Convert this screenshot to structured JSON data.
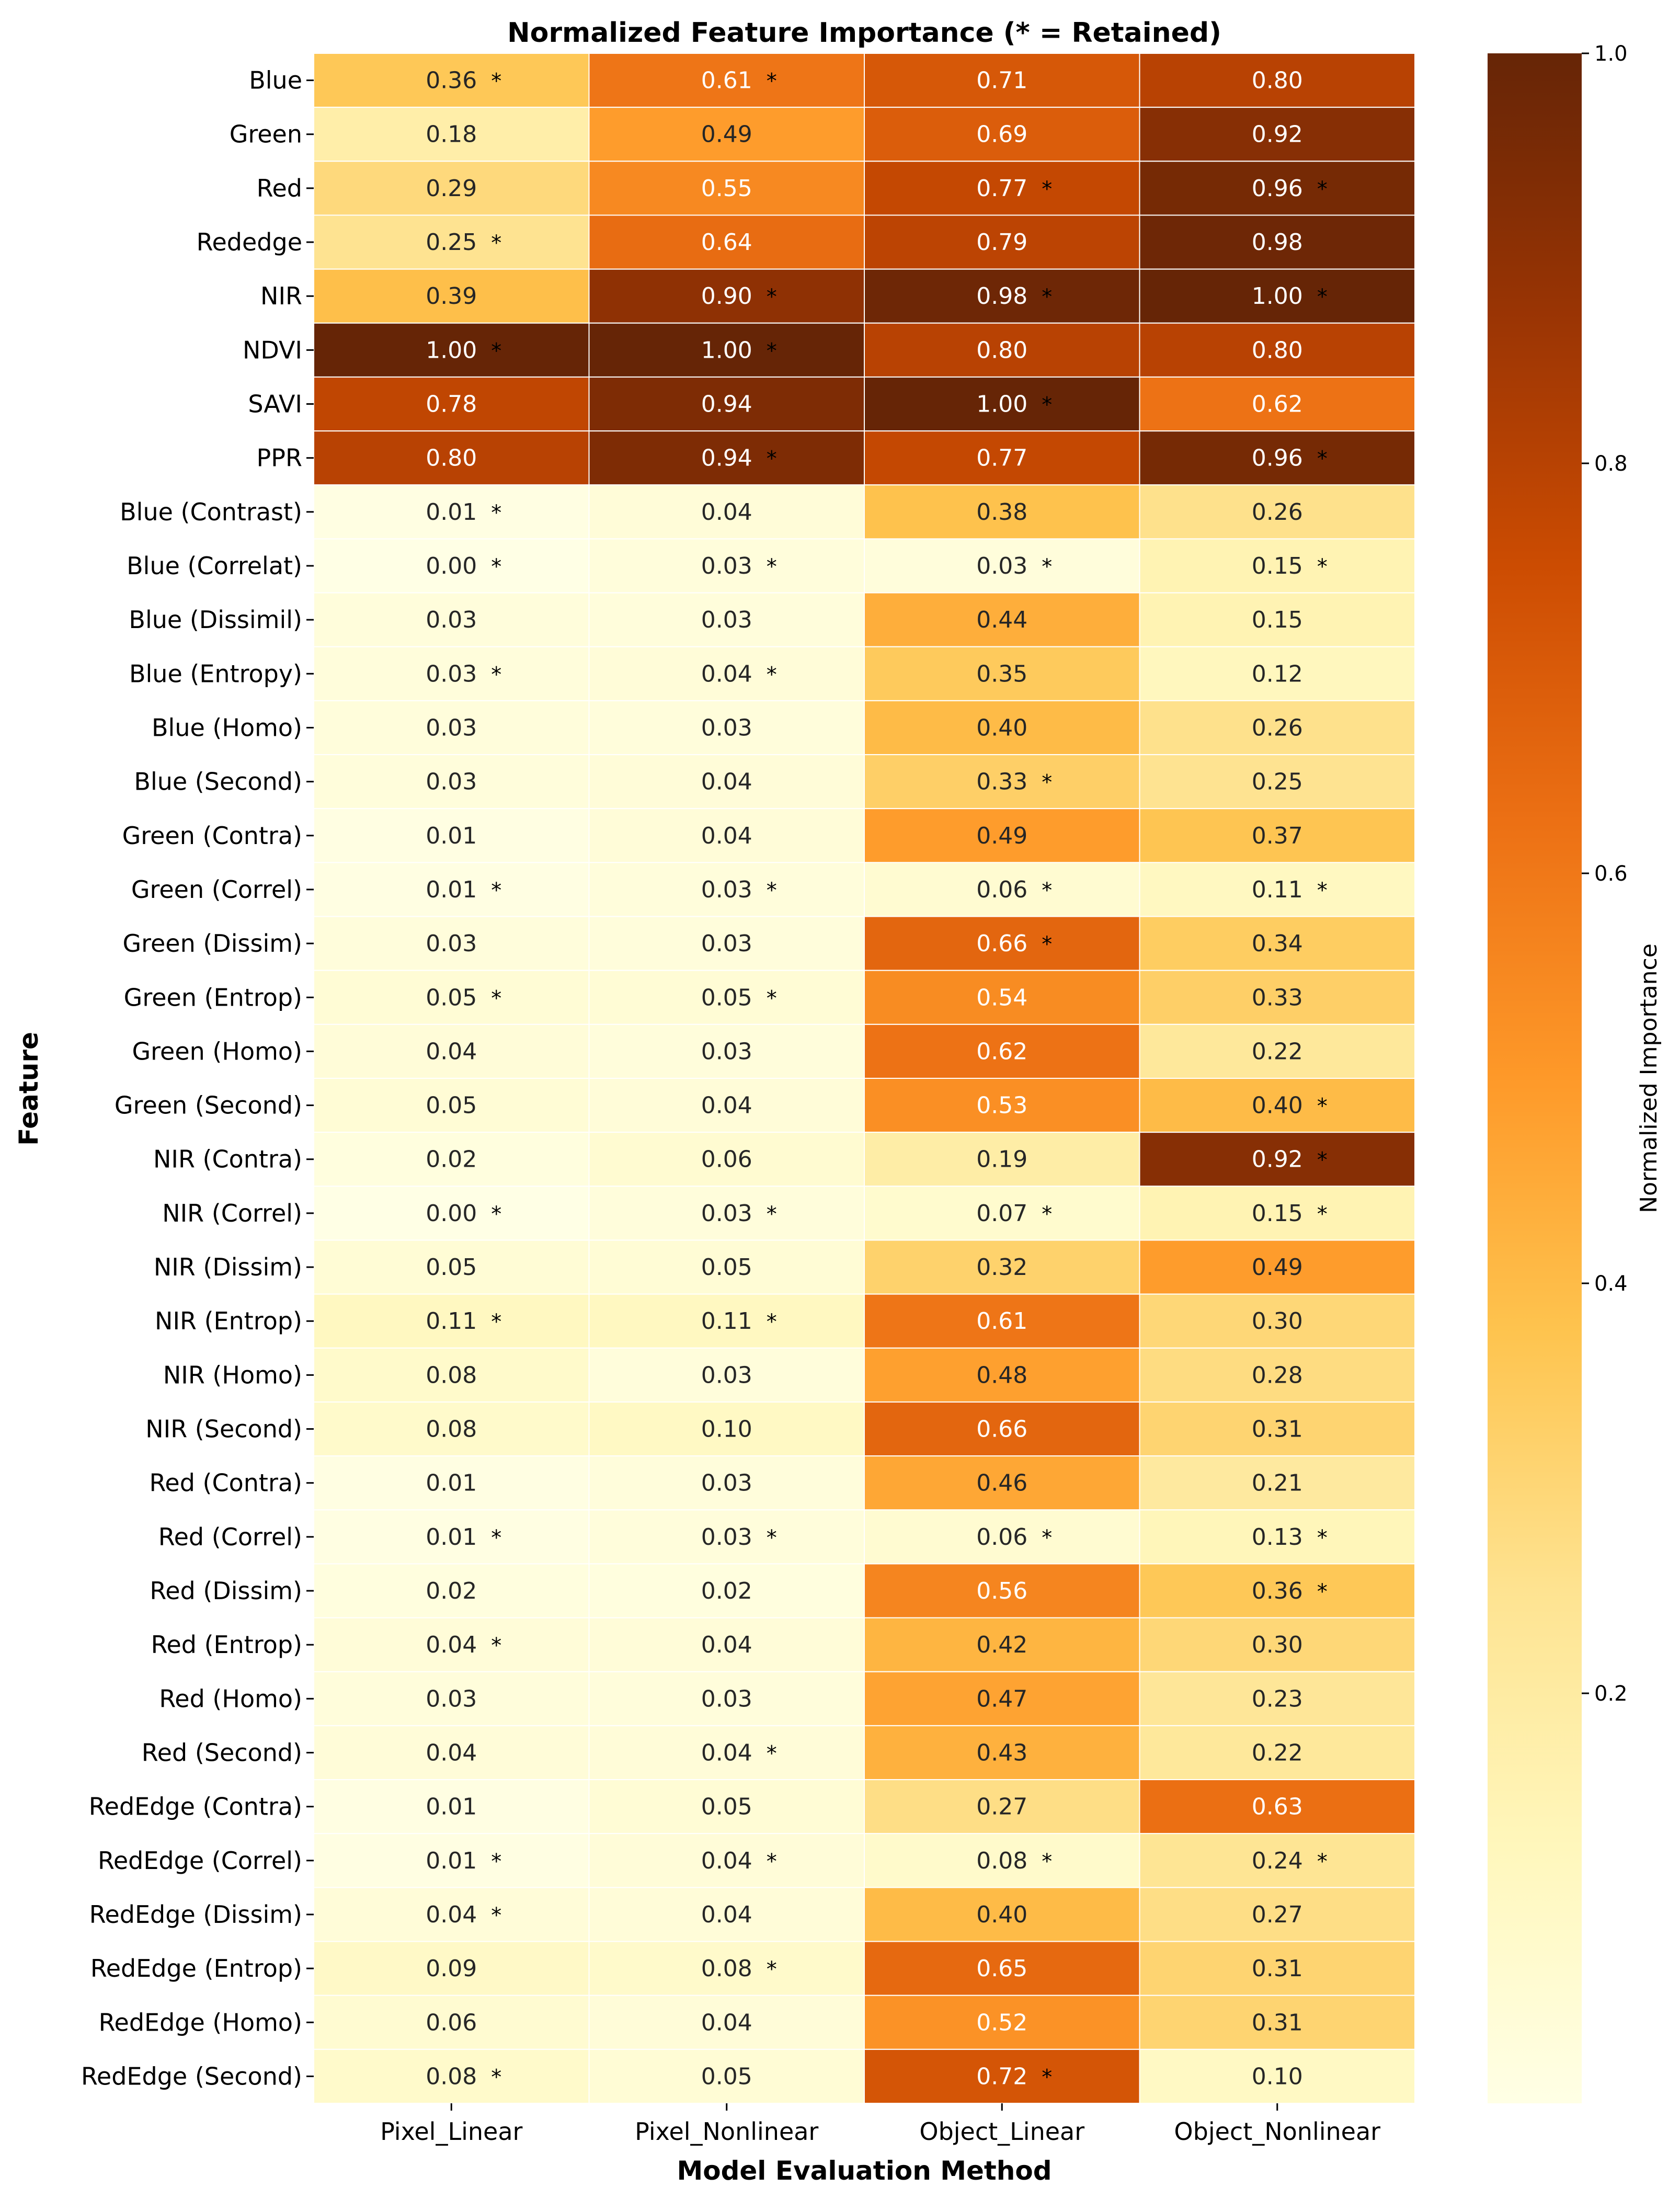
{
  "chart_data": {
    "type": "heatmap",
    "title": "Normalized Feature Importance (* = Retained)",
    "xlabel": "Model Evaluation Method",
    "ylabel": "Feature",
    "colorbar_label": "Normalized Importance",
    "colorbar_ticks": [
      "0.2",
      "0.4",
      "0.6",
      "0.8",
      "1.0"
    ],
    "colorbar_tick_values": [
      0.2,
      0.4,
      0.6,
      0.8,
      1.0
    ],
    "value_range": [
      0.0,
      1.0
    ],
    "colormap": "YlOrBr",
    "colormap_stops": [
      "#ffffe5",
      "#fff7bc",
      "#fee391",
      "#fec44f",
      "#fe9929",
      "#ec7014",
      "#cc4c02",
      "#993404",
      "#662506"
    ],
    "retained_marker": "*",
    "columns": [
      "Pixel_Linear",
      "Pixel_Nonlinear",
      "Object_Linear",
      "Object_Nonlinear"
    ],
    "rows": [
      "Blue",
      "Green",
      "Red",
      "Rededge",
      "NIR",
      "NDVI",
      "SAVI",
      "PPR",
      "Blue (Contrast)",
      "Blue (Correlat)",
      "Blue (Dissimil)",
      "Blue (Entropy)",
      "Blue (Homo)",
      "Blue (Second)",
      "Green (Contra)",
      "Green (Correl)",
      "Green (Dissim)",
      "Green (Entrop)",
      "Green (Homo)",
      "Green (Second)",
      "NIR (Contra)",
      "NIR (Correl)",
      "NIR (Dissim)",
      "NIR (Entrop)",
      "NIR (Homo)",
      "NIR (Second)",
      "Red (Contra)",
      "Red (Correl)",
      "Red (Dissim)",
      "Red (Entrop)",
      "Red (Homo)",
      "Red (Second)",
      "RedEdge (Contra)",
      "RedEdge (Correl)",
      "RedEdge (Dissim)",
      "RedEdge (Entrop)",
      "RedEdge (Homo)",
      "RedEdge (Second)"
    ],
    "values": [
      [
        0.36,
        0.61,
        0.71,
        0.8
      ],
      [
        0.18,
        0.49,
        0.69,
        0.92
      ],
      [
        0.29,
        0.55,
        0.77,
        0.96
      ],
      [
        0.25,
        0.64,
        0.79,
        0.98
      ],
      [
        0.39,
        0.9,
        0.98,
        1.0
      ],
      [
        1.0,
        1.0,
        0.8,
        0.8
      ],
      [
        0.78,
        0.94,
        1.0,
        0.62
      ],
      [
        0.8,
        0.94,
        0.77,
        0.96
      ],
      [
        0.01,
        0.04,
        0.38,
        0.26
      ],
      [
        0.0,
        0.03,
        0.03,
        0.15
      ],
      [
        0.03,
        0.03,
        0.44,
        0.15
      ],
      [
        0.03,
        0.04,
        0.35,
        0.12
      ],
      [
        0.03,
        0.03,
        0.4,
        0.26
      ],
      [
        0.03,
        0.04,
        0.33,
        0.25
      ],
      [
        0.01,
        0.04,
        0.49,
        0.37
      ],
      [
        0.01,
        0.03,
        0.06,
        0.11
      ],
      [
        0.03,
        0.03,
        0.66,
        0.34
      ],
      [
        0.05,
        0.05,
        0.54,
        0.33
      ],
      [
        0.04,
        0.03,
        0.62,
        0.22
      ],
      [
        0.05,
        0.04,
        0.53,
        0.4
      ],
      [
        0.02,
        0.06,
        0.19,
        0.92
      ],
      [
        0.0,
        0.03,
        0.07,
        0.15
      ],
      [
        0.05,
        0.05,
        0.32,
        0.49
      ],
      [
        0.11,
        0.11,
        0.61,
        0.3
      ],
      [
        0.08,
        0.03,
        0.48,
        0.28
      ],
      [
        0.08,
        0.1,
        0.66,
        0.31
      ],
      [
        0.01,
        0.03,
        0.46,
        0.21
      ],
      [
        0.01,
        0.03,
        0.06,
        0.13
      ],
      [
        0.02,
        0.02,
        0.56,
        0.36
      ],
      [
        0.04,
        0.04,
        0.42,
        0.3
      ],
      [
        0.03,
        0.03,
        0.47,
        0.23
      ],
      [
        0.04,
        0.04,
        0.43,
        0.22
      ],
      [
        0.01,
        0.05,
        0.27,
        0.63
      ],
      [
        0.01,
        0.04,
        0.08,
        0.24
      ],
      [
        0.04,
        0.04,
        0.4,
        0.27
      ],
      [
        0.09,
        0.08,
        0.65,
        0.31
      ],
      [
        0.06,
        0.04,
        0.52,
        0.31
      ],
      [
        0.08,
        0.05,
        0.72,
        0.1
      ]
    ],
    "retained": [
      [
        true,
        true,
        false,
        false
      ],
      [
        false,
        false,
        false,
        false
      ],
      [
        false,
        false,
        true,
        true
      ],
      [
        true,
        false,
        false,
        false
      ],
      [
        false,
        true,
        true,
        true
      ],
      [
        true,
        true,
        false,
        false
      ],
      [
        false,
        false,
        true,
        false
      ],
      [
        false,
        true,
        false,
        true
      ],
      [
        true,
        false,
        false,
        false
      ],
      [
        true,
        true,
        true,
        true
      ],
      [
        false,
        false,
        false,
        false
      ],
      [
        true,
        true,
        false,
        false
      ],
      [
        false,
        false,
        false,
        false
      ],
      [
        false,
        false,
        true,
        false
      ],
      [
        false,
        false,
        false,
        false
      ],
      [
        true,
        true,
        true,
        true
      ],
      [
        false,
        false,
        true,
        false
      ],
      [
        true,
        true,
        false,
        false
      ],
      [
        false,
        false,
        false,
        false
      ],
      [
        false,
        false,
        false,
        true
      ],
      [
        false,
        false,
        false,
        true
      ],
      [
        true,
        true,
        true,
        true
      ],
      [
        false,
        false,
        false,
        false
      ],
      [
        true,
        true,
        false,
        false
      ],
      [
        false,
        false,
        false,
        false
      ],
      [
        false,
        false,
        false,
        false
      ],
      [
        false,
        false,
        false,
        false
      ],
      [
        true,
        true,
        true,
        true
      ],
      [
        false,
        false,
        false,
        true
      ],
      [
        true,
        false,
        false,
        false
      ],
      [
        false,
        false,
        false,
        false
      ],
      [
        false,
        true,
        false,
        false
      ],
      [
        false,
        false,
        false,
        false
      ],
      [
        true,
        true,
        true,
        true
      ],
      [
        true,
        false,
        false,
        false
      ],
      [
        false,
        true,
        false,
        false
      ],
      [
        false,
        false,
        false,
        false
      ],
      [
        true,
        false,
        true,
        false
      ]
    ]
  }
}
